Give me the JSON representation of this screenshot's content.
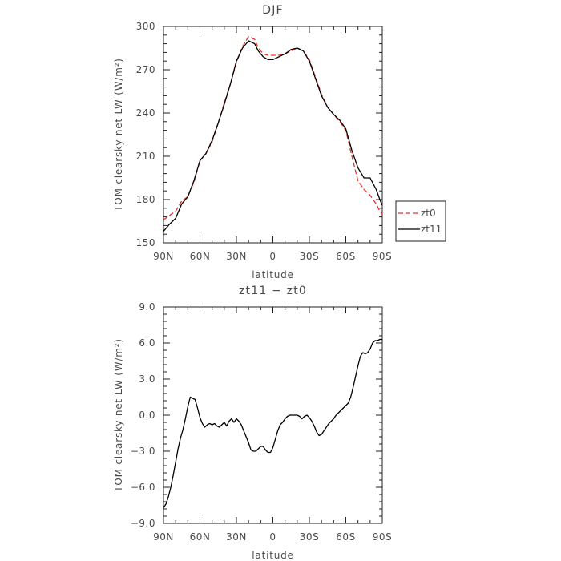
{
  "chart_data": [
    {
      "type": "line",
      "title": "DJF",
      "xlabel": "latitude",
      "ylabel": "TOM clearsky net LW (W/m²)",
      "xlim": [
        -90,
        90
      ],
      "ylim": [
        150,
        300
      ],
      "xticks": [
        -90,
        -60,
        -30,
        0,
        30,
        60,
        90
      ],
      "xtick_labels": [
        "90N",
        "60N",
        "30N",
        "0",
        "30S",
        "60S",
        "90S"
      ],
      "yticks": [
        150,
        180,
        210,
        240,
        270,
        300
      ],
      "ytick_labels": [
        "150",
        "180",
        "210",
        "240",
        "270",
        "300"
      ],
      "grid": false,
      "legend_position": "outside-right",
      "series": [
        {
          "name": "zt0",
          "color": "#e8302a",
          "dash": "dashed",
          "x": [
            -90,
            -85,
            -80,
            -75,
            -70,
            -65,
            -60,
            -55,
            -50,
            -45,
            -40,
            -35,
            -30,
            -25,
            -20,
            -15,
            -12,
            -8,
            -4,
            0,
            5,
            10,
            15,
            20,
            25,
            30,
            35,
            40,
            45,
            50,
            55,
            60,
            65,
            70,
            75,
            80,
            85,
            88,
            90
          ],
          "y": [
            166,
            169,
            172,
            179,
            182,
            192,
            207,
            212,
            220,
            233,
            247,
            260,
            275,
            286,
            293,
            291,
            285,
            281,
            280,
            280,
            280,
            281,
            283,
            285,
            283,
            277,
            265,
            253,
            244,
            239,
            234,
            228,
            210,
            193,
            187,
            183,
            177,
            172,
            170
          ]
        },
        {
          "name": "zt11",
          "color": "#000000",
          "dash": "solid",
          "x": [
            -90,
            -85,
            -80,
            -75,
            -70,
            -65,
            -60,
            -55,
            -50,
            -45,
            -40,
            -35,
            -30,
            -25,
            -20,
            -15,
            -12,
            -8,
            -4,
            0,
            5,
            10,
            15,
            20,
            25,
            30,
            35,
            40,
            45,
            50,
            55,
            60,
            65,
            70,
            75,
            80,
            85,
            88,
            90
          ],
          "y": [
            158,
            163,
            167,
            177,
            182,
            193,
            207,
            212,
            221,
            233,
            246,
            260,
            276,
            285,
            290,
            288,
            283,
            279,
            277,
            277,
            279,
            281,
            284,
            285,
            283,
            276,
            264,
            252,
            244,
            239,
            235,
            229,
            214,
            202,
            195,
            195,
            187,
            180,
            176
          ]
        }
      ]
    },
    {
      "type": "line",
      "title": "zt11 − zt0",
      "xlabel": "latitude",
      "ylabel": "TOM clearsky net LW (W/m²)",
      "xlim": [
        -90,
        90
      ],
      "ylim": [
        -9,
        9
      ],
      "xticks": [
        -90,
        -60,
        -30,
        0,
        30,
        60,
        90
      ],
      "xtick_labels": [
        "90N",
        "60N",
        "30N",
        "0",
        "30S",
        "60S",
        "90S"
      ],
      "yticks": [
        -9,
        -6,
        -3,
        0,
        3,
        6,
        9
      ],
      "ytick_labels": [
        "−9.0",
        "−6.0",
        "−3.0",
        "0.0",
        "3.0",
        "6.0",
        "9.0"
      ],
      "grid": false,
      "series": [
        {
          "color": "#000000",
          "dash": "solid",
          "x": [
            -90,
            -88,
            -86,
            -84,
            -82,
            -80,
            -78,
            -76,
            -74,
            -72,
            -70,
            -68,
            -66,
            -64,
            -62,
            -60,
            -58,
            -56,
            -54,
            -52,
            -50,
            -48,
            -46,
            -44,
            -42,
            -40,
            -38,
            -36,
            -34,
            -32,
            -30,
            -28,
            -26,
            -24,
            -22,
            -20,
            -18,
            -16,
            -14,
            -12,
            -10,
            -8,
            -6,
            -4,
            -2,
            0,
            2,
            4,
            6,
            8,
            10,
            12,
            14,
            16,
            18,
            20,
            22,
            24,
            26,
            28,
            30,
            32,
            34,
            36,
            38,
            40,
            42,
            44,
            46,
            48,
            50,
            52,
            54,
            56,
            58,
            60,
            62,
            64,
            66,
            68,
            70,
            72,
            74,
            76,
            78,
            80,
            82,
            84,
            86,
            88,
            90
          ],
          "y": [
            -7.7,
            -7.4,
            -6.8,
            -6.0,
            -5.0,
            -3.9,
            -2.8,
            -1.9,
            -1.2,
            -0.3,
            0.7,
            1.5,
            1.4,
            1.3,
            0.6,
            -0.2,
            -0.7,
            -1.0,
            -0.8,
            -0.7,
            -0.8,
            -0.7,
            -0.9,
            -1.0,
            -0.8,
            -0.6,
            -0.9,
            -0.5,
            -0.3,
            -0.6,
            -0.3,
            -0.5,
            -0.8,
            -1.3,
            -1.8,
            -2.3,
            -2.9,
            -3.0,
            -3.0,
            -2.8,
            -2.6,
            -2.6,
            -2.9,
            -3.1,
            -3.1,
            -2.7,
            -2.0,
            -1.3,
            -0.8,
            -0.6,
            -0.3,
            -0.1,
            0.0,
            0.0,
            0.0,
            0.0,
            -0.1,
            -0.3,
            -0.1,
            0.0,
            -0.2,
            -0.5,
            -0.9,
            -1.4,
            -1.7,
            -1.6,
            -1.3,
            -1.0,
            -0.7,
            -0.5,
            -0.3,
            0.0,
            0.2,
            0.4,
            0.6,
            0.8,
            1.0,
            1.5,
            2.3,
            3.2,
            4.1,
            4.9,
            5.2,
            5.1,
            5.2,
            5.5,
            6.0,
            6.2,
            6.2,
            6.3,
            6.3
          ]
        }
      ]
    }
  ]
}
